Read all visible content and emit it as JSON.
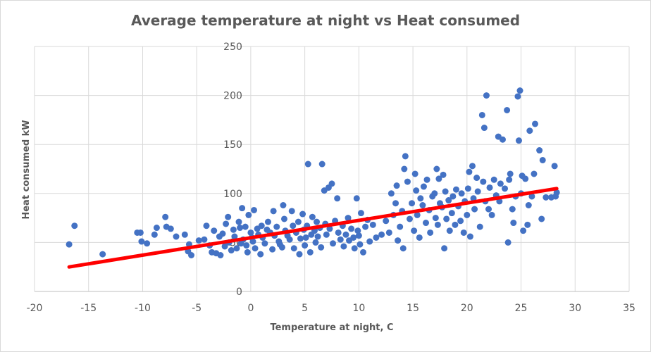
{
  "chart_data": {
    "type": "scatter",
    "title": "Average temperature at night vs Heat consumed",
    "xlabel": "Temperature at night, C",
    "ylabel": "Heat consumed kW",
    "xlim": [
      -20,
      35
    ],
    "ylim": [
      0,
      250
    ],
    "xticks": [
      -20,
      -15,
      -10,
      -5,
      0,
      5,
      10,
      15,
      20,
      25,
      30,
      35
    ],
    "yticks": [
      0,
      50,
      100,
      150,
      200,
      250
    ],
    "grid": true,
    "legend": "none",
    "colors": {
      "points": "#4472c4",
      "trendline": "#ff0000",
      "grid": "#d9d9d9",
      "text": "#595959"
    },
    "series": [
      {
        "points": [
          [
            -16.8,
            48
          ],
          [
            -16.3,
            67
          ],
          [
            -13.7,
            38
          ],
          [
            -10.5,
            60
          ],
          [
            -10.2,
            60
          ],
          [
            -10.1,
            51
          ],
          [
            -9.6,
            49
          ],
          [
            -8.9,
            58
          ],
          [
            -8.7,
            65
          ],
          [
            -7.9,
            76
          ],
          [
            -7.8,
            66
          ],
          [
            -7.4,
            64
          ],
          [
            -6.9,
            56
          ],
          [
            -6.1,
            58
          ],
          [
            -5.8,
            41
          ],
          [
            -5.7,
            48
          ],
          [
            -5.5,
            37
          ],
          [
            -4.8,
            52
          ],
          [
            -4.3,
            53
          ],
          [
            -4.1,
            67
          ],
          [
            -3.8,
            47
          ],
          [
            -3.6,
            40
          ],
          [
            -3.4,
            62
          ],
          [
            -3.2,
            39
          ],
          [
            -2.9,
            56
          ],
          [
            -2.8,
            37
          ],
          [
            -2.6,
            59
          ],
          [
            -2.4,
            46
          ],
          [
            -2.3,
            69
          ],
          [
            -2.1,
            76
          ],
          [
            -2.0,
            50
          ],
          [
            -1.8,
            42
          ],
          [
            -1.6,
            63
          ],
          [
            -1.5,
            56
          ],
          [
            -1.3,
            44
          ],
          [
            -1.1,
            71
          ],
          [
            -1.0,
            65
          ],
          [
            -0.9,
            49
          ],
          [
            -0.8,
            85
          ],
          [
            -0.7,
            53
          ],
          [
            -0.5,
            66
          ],
          [
            -0.4,
            47
          ],
          [
            -0.3,
            40
          ],
          [
            -0.2,
            78
          ],
          [
            0.0,
            60
          ],
          [
            0.1,
            55
          ],
          [
            0.2,
            51
          ],
          [
            0.3,
            83
          ],
          [
            0.4,
            44
          ],
          [
            0.6,
            64
          ],
          [
            0.7,
            58
          ],
          [
            0.9,
            38
          ],
          [
            1.0,
            67
          ],
          [
            1.1,
            55
          ],
          [
            1.3,
            49
          ],
          [
            1.5,
            63
          ],
          [
            1.6,
            71
          ],
          [
            1.8,
            60
          ],
          [
            2.0,
            43
          ],
          [
            2.1,
            82
          ],
          [
            2.2,
            57
          ],
          [
            2.4,
            66
          ],
          [
            2.6,
            51
          ],
          [
            2.7,
            48
          ],
          [
            2.9,
            45
          ],
          [
            3.0,
            88
          ],
          [
            3.1,
            74
          ],
          [
            3.2,
            62
          ],
          [
            3.4,
            57
          ],
          [
            3.6,
            53
          ],
          [
            3.8,
            82
          ],
          [
            3.9,
            67
          ],
          [
            4.0,
            44
          ],
          [
            4.2,
            60
          ],
          [
            4.4,
            71
          ],
          [
            4.5,
            38
          ],
          [
            4.6,
            54
          ],
          [
            4.8,
            79
          ],
          [
            4.9,
            63
          ],
          [
            5.0,
            47
          ],
          [
            5.1,
            55
          ],
          [
            5.2,
            67
          ],
          [
            5.3,
            130
          ],
          [
            5.5,
            40
          ],
          [
            5.6,
            58
          ],
          [
            5.7,
            76
          ],
          [
            5.9,
            62
          ],
          [
            6.0,
            50
          ],
          [
            6.1,
            71
          ],
          [
            6.2,
            56
          ],
          [
            6.4,
            65
          ],
          [
            6.5,
            45
          ],
          [
            6.6,
            130
          ],
          [
            6.8,
            103
          ],
          [
            6.9,
            69
          ],
          [
            7.0,
            58
          ],
          [
            7.2,
            106
          ],
          [
            7.3,
            64
          ],
          [
            7.5,
            110
          ],
          [
            7.6,
            49
          ],
          [
            7.8,
            72
          ],
          [
            8.0,
            95
          ],
          [
            8.1,
            60
          ],
          [
            8.3,
            53
          ],
          [
            8.5,
            67
          ],
          [
            8.6,
            46
          ],
          [
            8.8,
            58
          ],
          [
            9.0,
            75
          ],
          [
            9.1,
            52
          ],
          [
            9.3,
            64
          ],
          [
            9.5,
            55
          ],
          [
            9.6,
            44
          ],
          [
            9.8,
            95
          ],
          [
            9.9,
            62
          ],
          [
            10.0,
            57
          ],
          [
            10.1,
            48
          ],
          [
            10.2,
            80
          ],
          [
            10.4,
            40
          ],
          [
            10.6,
            66
          ],
          [
            10.8,
            73
          ],
          [
            11.0,
            51
          ],
          [
            11.3,
            68
          ],
          [
            11.6,
            55
          ],
          [
            12.1,
            58
          ],
          [
            12.5,
            72
          ],
          [
            12.8,
            60
          ],
          [
            13.0,
            100
          ],
          [
            13.2,
            78
          ],
          [
            13.4,
            90
          ],
          [
            13.5,
            108
          ],
          [
            13.6,
            52
          ],
          [
            13.8,
            66
          ],
          [
            14.0,
            82
          ],
          [
            14.1,
            44
          ],
          [
            14.2,
            125
          ],
          [
            14.3,
            138
          ],
          [
            14.5,
            112
          ],
          [
            14.7,
            74
          ],
          [
            14.9,
            90
          ],
          [
            15.1,
            62
          ],
          [
            15.2,
            120
          ],
          [
            15.3,
            103
          ],
          [
            15.4,
            78
          ],
          [
            15.6,
            55
          ],
          [
            15.7,
            95
          ],
          [
            15.9,
            88
          ],
          [
            16.0,
            107
          ],
          [
            16.2,
            70
          ],
          [
            16.3,
            114
          ],
          [
            16.5,
            83
          ],
          [
            16.6,
            60
          ],
          [
            16.8,
            97
          ],
          [
            17.0,
            100
          ],
          [
            17.1,
            75
          ],
          [
            17.2,
            125
          ],
          [
            17.3,
            68
          ],
          [
            17.4,
            115
          ],
          [
            17.5,
            90
          ],
          [
            17.7,
            86
          ],
          [
            17.8,
            119
          ],
          [
            17.9,
            44
          ],
          [
            18.0,
            102
          ],
          [
            18.1,
            74
          ],
          [
            18.3,
            93
          ],
          [
            18.4,
            62
          ],
          [
            18.6,
            80
          ],
          [
            18.7,
            97
          ],
          [
            18.9,
            68
          ],
          [
            19.0,
            104
          ],
          [
            19.2,
            87
          ],
          [
            19.4,
            72
          ],
          [
            19.5,
            100
          ],
          [
            19.7,
            60
          ],
          [
            19.8,
            92
          ],
          [
            20.0,
            78
          ],
          [
            20.1,
            105
          ],
          [
            20.2,
            122
          ],
          [
            20.3,
            56
          ],
          [
            20.5,
            128
          ],
          [
            20.6,
            95
          ],
          [
            20.7,
            84
          ],
          [
            20.9,
            116
          ],
          [
            21.0,
            102
          ],
          [
            21.2,
            66
          ],
          [
            21.4,
            180
          ],
          [
            21.5,
            112
          ],
          [
            21.6,
            167
          ],
          [
            21.7,
            92
          ],
          [
            21.8,
            200
          ],
          [
            22.0,
            84
          ],
          [
            22.1,
            106
          ],
          [
            22.3,
            78
          ],
          [
            22.5,
            114
          ],
          [
            22.7,
            98
          ],
          [
            22.9,
            158
          ],
          [
            23.0,
            92
          ],
          [
            23.1,
            110
          ],
          [
            23.3,
            155
          ],
          [
            23.5,
            105
          ],
          [
            23.7,
            185
          ],
          [
            23.8,
            50
          ],
          [
            23.9,
            114
          ],
          [
            24.0,
            120
          ],
          [
            24.2,
            84
          ],
          [
            24.3,
            70
          ],
          [
            24.5,
            97
          ],
          [
            24.7,
            199
          ],
          [
            24.8,
            154
          ],
          [
            24.9,
            205
          ],
          [
            25.0,
            100
          ],
          [
            25.1,
            118
          ],
          [
            25.2,
            62
          ],
          [
            25.4,
            115
          ],
          [
            25.6,
            68
          ],
          [
            25.7,
            88
          ],
          [
            25.8,
            164
          ],
          [
            26.0,
            97
          ],
          [
            26.2,
            120
          ],
          [
            26.3,
            171
          ],
          [
            26.7,
            144
          ],
          [
            26.9,
            74
          ],
          [
            27.0,
            134
          ],
          [
            27.3,
            96
          ],
          [
            27.8,
            96
          ],
          [
            28.1,
            128
          ],
          [
            28.2,
            97
          ],
          [
            28.3,
            101
          ]
        ]
      }
    ],
    "trendline": {
      "x": [
        -16.8,
        28.3
      ],
      "y": [
        25,
        105
      ]
    }
  }
}
